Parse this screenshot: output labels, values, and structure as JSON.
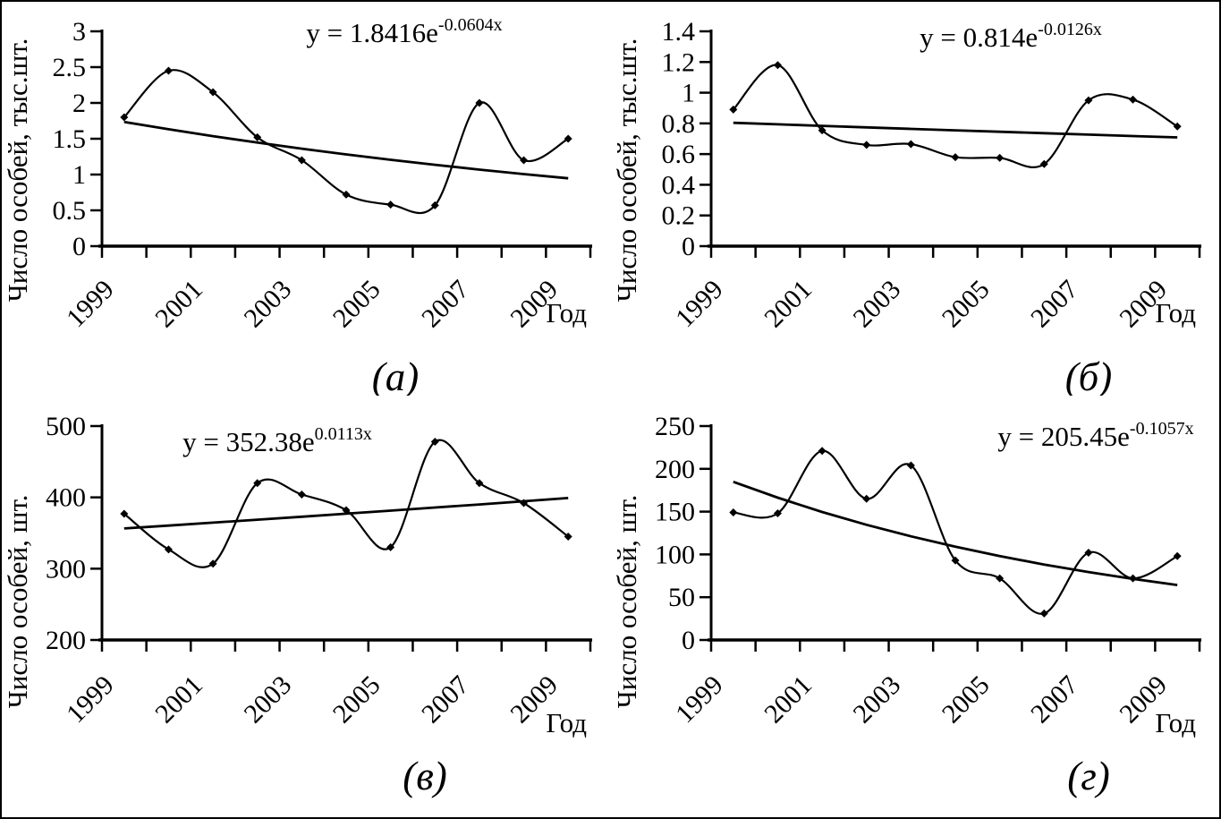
{
  "figure": {
    "background": "#ffffff",
    "ink_color": "#000000",
    "xlabel": "Год",
    "x_tick_labels": [
      "1999",
      "2001",
      "2003",
      "2005",
      "2007",
      "2009"
    ]
  },
  "chart_data": [
    {
      "id": "a",
      "type": "line",
      "caption": "(а)",
      "equation": {
        "base": "y = 1.8416e",
        "exponent": "-0.0604x"
      },
      "ylabel": "Число особей, тыс.шт.",
      "xlabel": "Год",
      "x_categories": [
        1999,
        2000,
        2001,
        2002,
        2003,
        2004,
        2005,
        2006,
        2007,
        2008,
        2009
      ],
      "x_tick_labels": [
        "1999",
        "2001",
        "2003",
        "2005",
        "2007",
        "2009"
      ],
      "ylim": [
        0,
        3
      ],
      "yticks": [
        0,
        0.5,
        1,
        1.5,
        2,
        2.5,
        3
      ],
      "ytick_labels": [
        "0",
        "0.5",
        "1",
        "1.5",
        "2",
        "2.5",
        "3"
      ],
      "series": [
        {
          "name": "observed",
          "style": "smooth-line-with-diamond-markers",
          "values": [
            1.8,
            2.45,
            2.15,
            1.52,
            1.2,
            0.72,
            0.58,
            0.57,
            2.0,
            1.2,
            1.5
          ]
        },
        {
          "name": "exponential-trend",
          "style": "plain-line",
          "a": 1.8416,
          "b": -0.0604
        }
      ]
    },
    {
      "id": "b",
      "type": "line",
      "caption": "(б)",
      "equation": {
        "base": "y = 0.814e",
        "exponent": "-0.0126x"
      },
      "ylabel": "Число особей, тыс.шт.",
      "xlabel": "Год",
      "x_categories": [
        1999,
        2000,
        2001,
        2002,
        2003,
        2004,
        2005,
        2006,
        2007,
        2008,
        2009
      ],
      "x_tick_labels": [
        "1999",
        "2001",
        "2003",
        "2005",
        "2007",
        "2009"
      ],
      "ylim": [
        0,
        1.4
      ],
      "yticks": [
        0,
        0.2,
        0.4,
        0.6,
        0.8,
        1,
        1.2,
        1.4
      ],
      "ytick_labels": [
        "0",
        "0.2",
        "0.4",
        "0.6",
        "0.8",
        "1",
        "1.2",
        "1.4"
      ],
      "series": [
        {
          "name": "observed",
          "style": "smooth-line-with-diamond-markers",
          "values": [
            0.89,
            1.18,
            0.755,
            0.66,
            0.665,
            0.58,
            0.575,
            0.535,
            0.95,
            0.955,
            0.78
          ]
        },
        {
          "name": "exponential-trend",
          "style": "plain-line",
          "a": 0.814,
          "b": -0.0126
        }
      ]
    },
    {
      "id": "v",
      "type": "line",
      "caption": "(в)",
      "equation": {
        "base": "y = 352.38e",
        "exponent": "0.0113x"
      },
      "ylabel": "Число особей, шт.",
      "xlabel": "Год",
      "x_categories": [
        1999,
        2000,
        2001,
        2002,
        2003,
        2004,
        2005,
        2006,
        2007,
        2008,
        2009
      ],
      "x_tick_labels": [
        "1999",
        "2001",
        "2003",
        "2005",
        "2007",
        "2009"
      ],
      "ylim": [
        200,
        500
      ],
      "yticks": [
        200,
        300,
        400,
        500
      ],
      "ytick_labels": [
        "200",
        "300",
        "400",
        "500"
      ],
      "series": [
        {
          "name": "observed",
          "style": "smooth-line-with-diamond-markers",
          "values": [
            377,
            327,
            307,
            420,
            404,
            382,
            330,
            478,
            420,
            392,
            345
          ]
        },
        {
          "name": "exponential-trend",
          "style": "plain-line",
          "a": 352.38,
          "b": 0.0113
        }
      ]
    },
    {
      "id": "g",
      "type": "line",
      "caption": "(г)",
      "equation": {
        "base": "y = 205.45e",
        "exponent": "-0.1057x"
      },
      "ylabel": "Число особей, шт.",
      "xlabel": "Год",
      "x_categories": [
        1999,
        2000,
        2001,
        2002,
        2003,
        2004,
        2005,
        2006,
        2007,
        2008,
        2009
      ],
      "x_tick_labels": [
        "1999",
        "2001",
        "2003",
        "2005",
        "2007",
        "2009"
      ],
      "ylim": [
        0,
        250
      ],
      "yticks": [
        0,
        50,
        100,
        150,
        200,
        250
      ],
      "ytick_labels": [
        "0",
        "50",
        "100",
        "150",
        "200",
        "250"
      ],
      "series": [
        {
          "name": "observed",
          "style": "smooth-line-with-diamond-markers",
          "values": [
            149,
            148,
            221,
            165,
            204,
            93,
            72,
            31,
            102,
            72,
            98
          ]
        },
        {
          "name": "exponential-trend",
          "style": "plain-line",
          "a": 205.45,
          "b": -0.1057
        }
      ]
    }
  ]
}
